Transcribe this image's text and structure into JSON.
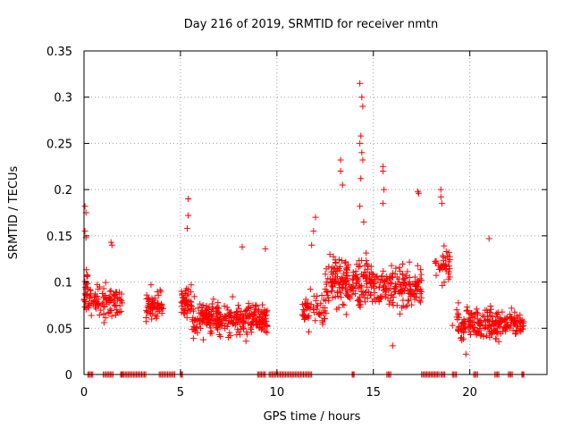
{
  "chart_data": {
    "type": "scatter",
    "title": "Day 216 of 2019, SRMTID for receiver nmtn",
    "xlabel": "GPS time / hours",
    "ylabel": "SRMTID / TECUs",
    "xlim": [
      0,
      24
    ],
    "ylim": [
      0,
      0.35
    ],
    "xticks": [
      "0",
      "5",
      "10",
      "15",
      "20"
    ],
    "yticks": [
      "0",
      "0.05",
      "0.1",
      "0.15",
      "0.2",
      "0.25",
      "0.3",
      "0.35"
    ],
    "grid": true,
    "marker": "+",
    "color": "#ff0000",
    "series": [
      {
        "name": "SRMTID",
        "clusters": [
          {
            "x_range": [
              0.0,
              0.2
            ],
            "y_mean": 0.09,
            "y_spread": 0.02,
            "count": 24
          },
          {
            "x_range": [
              0.2,
              1.0
            ],
            "y_mean": 0.08,
            "y_spread": 0.015,
            "count": 40
          },
          {
            "x_range": [
              1.0,
              2.0
            ],
            "y_mean": 0.08,
            "y_spread": 0.018,
            "count": 60
          },
          {
            "x_range": [
              3.2,
              4.1
            ],
            "y_mean": 0.075,
            "y_spread": 0.015,
            "count": 60
          },
          {
            "x_range": [
              5.0,
              5.6
            ],
            "y_mean": 0.08,
            "y_spread": 0.018,
            "count": 45
          },
          {
            "x_range": [
              5.6,
              7.0
            ],
            "y_mean": 0.06,
            "y_spread": 0.018,
            "count": 110
          },
          {
            "x_range": [
              7.0,
              9.5
            ],
            "y_mean": 0.06,
            "y_spread": 0.018,
            "count": 180
          },
          {
            "x_range": [
              11.3,
              12.5
            ],
            "y_mean": 0.07,
            "y_spread": 0.02,
            "count": 55
          },
          {
            "x_range": [
              12.5,
              15.0
            ],
            "y_mean": 0.1,
            "y_spread": 0.025,
            "count": 200
          },
          {
            "x_range": [
              15.0,
              17.5
            ],
            "y_mean": 0.095,
            "y_spread": 0.022,
            "count": 170
          },
          {
            "x_range": [
              18.2,
              19.0
            ],
            "y_mean": 0.12,
            "y_spread": 0.02,
            "count": 40
          },
          {
            "x_range": [
              19.3,
              20.5
            ],
            "y_mean": 0.055,
            "y_spread": 0.018,
            "count": 80
          },
          {
            "x_range": [
              20.5,
              22.8
            ],
            "y_mean": 0.055,
            "y_spread": 0.015,
            "count": 150
          }
        ],
        "extra_points": [
          {
            "x": 0.05,
            "y": 0.182
          },
          {
            "x": 0.1,
            "y": 0.175
          },
          {
            "x": 0.05,
            "y": 0.155
          },
          {
            "x": 0.1,
            "y": 0.148
          },
          {
            "x": 1.4,
            "y": 0.143
          },
          {
            "x": 1.45,
            "y": 0.14
          },
          {
            "x": 5.4,
            "y": 0.19
          },
          {
            "x": 5.4,
            "y": 0.172
          },
          {
            "x": 5.35,
            "y": 0.158
          },
          {
            "x": 8.2,
            "y": 0.138
          },
          {
            "x": 9.4,
            "y": 0.136
          },
          {
            "x": 11.8,
            "y": 0.14
          },
          {
            "x": 11.9,
            "y": 0.155
          },
          {
            "x": 12.0,
            "y": 0.17
          },
          {
            "x": 13.3,
            "y": 0.232
          },
          {
            "x": 13.4,
            "y": 0.205
          },
          {
            "x": 13.3,
            "y": 0.22
          },
          {
            "x": 14.3,
            "y": 0.315
          },
          {
            "x": 14.4,
            "y": 0.3
          },
          {
            "x": 14.45,
            "y": 0.29
          },
          {
            "x": 14.35,
            "y": 0.258
          },
          {
            "x": 14.3,
            "y": 0.25
          },
          {
            "x": 14.4,
            "y": 0.24
          },
          {
            "x": 14.45,
            "y": 0.232
          },
          {
            "x": 14.35,
            "y": 0.212
          },
          {
            "x": 14.3,
            "y": 0.182
          },
          {
            "x": 14.5,
            "y": 0.165
          },
          {
            "x": 15.5,
            "y": 0.225
          },
          {
            "x": 15.5,
            "y": 0.22
          },
          {
            "x": 15.55,
            "y": 0.2
          },
          {
            "x": 15.5,
            "y": 0.185
          },
          {
            "x": 17.3,
            "y": 0.198
          },
          {
            "x": 17.35,
            "y": 0.196
          },
          {
            "x": 18.5,
            "y": 0.2
          },
          {
            "x": 18.5,
            "y": 0.192
          },
          {
            "x": 18.55,
            "y": 0.185
          },
          {
            "x": 21.0,
            "y": 0.147
          },
          {
            "x": 16.0,
            "y": 0.031
          },
          {
            "x": 19.1,
            "y": 0.053
          },
          {
            "x": 19.8,
            "y": 0.022
          }
        ],
        "zero_segments": [
          [
            0.2,
            0.45
          ],
          [
            1.0,
            1.5
          ],
          [
            1.9,
            2.0
          ],
          [
            2.0,
            3.2
          ],
          [
            3.9,
            4.7
          ],
          [
            5.0,
            5.1
          ],
          [
            9.0,
            9.4
          ],
          [
            9.6,
            11.8
          ],
          [
            13.9,
            14.0
          ],
          [
            15.7,
            15.9
          ],
          [
            17.5,
            18.4
          ],
          [
            18.5,
            18.7
          ],
          [
            19.1,
            19.3
          ],
          [
            20.2,
            20.4
          ],
          [
            21.3,
            21.5
          ],
          [
            22.0,
            22.2
          ],
          [
            22.7,
            22.8
          ]
        ]
      }
    ]
  }
}
